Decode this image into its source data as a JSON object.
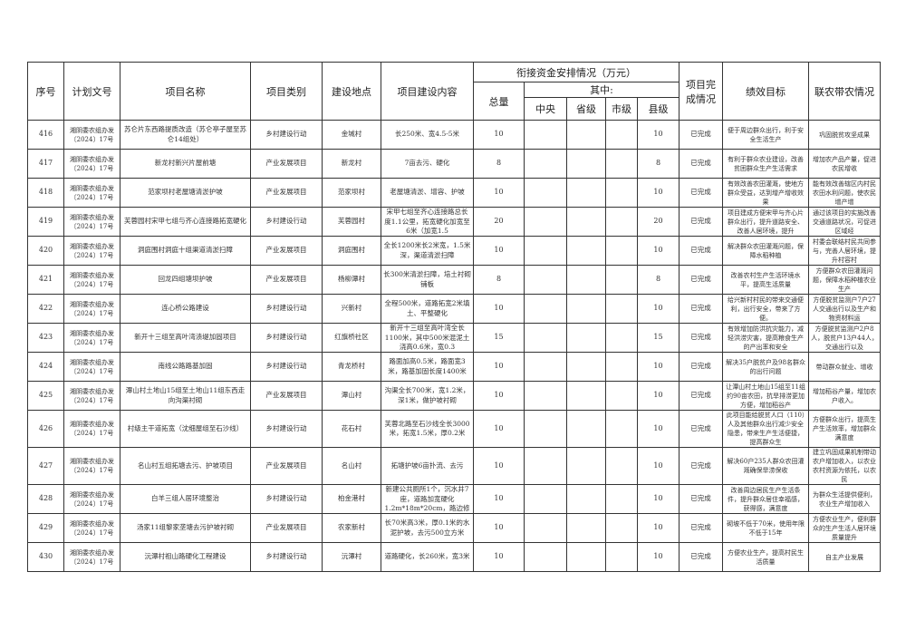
{
  "header": {
    "no": "序号",
    "doc": "计划文号",
    "name": "项目名称",
    "type": "项目类别",
    "place": "建设地点",
    "content": "项目建设内容",
    "funds": "衔接资金安排情况（万元）",
    "total": "总量",
    "of_which": "其中:",
    "central": "中央",
    "provincial": "省级",
    "city": "市级",
    "county": "县级",
    "status": "项目完成情况",
    "goal": "绩效目标",
    "link": "联农带农情况"
  },
  "rows": [
    {
      "no": "416",
      "doc": "湘阴委农组办发〔2024〕17号",
      "name": "苏仑片东西路提质改造（苏仑亭子屋至苏仑14组处）",
      "type": "乡村建设行动",
      "place": "金堿村",
      "content": "长250米、宽4.5-5米",
      "total": "10",
      "central": "",
      "provincial": "",
      "city": "",
      "county": "10",
      "status": "已完成",
      "goal": "便于周边群众出行，利于安全生活生产",
      "link": "巩固脱贫攻坚成果"
    },
    {
      "no": "417",
      "doc": "湘阴委农组办发〔2024〕17号",
      "name": "新龙村新兴片屋前塘",
      "type": "产业发展项目",
      "place": "新龙村",
      "content": "7亩去污、硬化",
      "total": "8",
      "central": "",
      "provincial": "",
      "city": "",
      "county": "8",
      "status": "已完成",
      "goal": "有利于群众农业建设，改善贫困群众生产生活需求",
      "link": "增加农产品产量，促进农民增收"
    },
    {
      "no": "418",
      "doc": "湘阴委农组办发〔2024〕17号",
      "name": "范家坝村老屋塘清淤护坡",
      "type": "产业发展项目",
      "place": "范家坝村",
      "content": "老屋塘清淤、增容、护坡",
      "total": "10",
      "central": "",
      "provincial": "",
      "city": "",
      "county": "10",
      "status": "已完成",
      "goal": "有效改善农田灌溉，使地方群众受益，达到增产增收效果",
      "link": "能有效改善辖区内村民农田水利问题，使农民增产增"
    },
    {
      "no": "419",
      "doc": "湘阴委农组办发〔2024〕17号",
      "name": "芙蓉园村宋甲七组与齐心连接路拓宽硬化",
      "type": "乡村建设行动",
      "place": "芙蓉园村",
      "content": "宋甲七组至齐心连接路总长度1.1公里，拓宽硬化加宽至6米（加宽1.5",
      "total": "20",
      "central": "",
      "provincial": "",
      "city": "",
      "county": "20",
      "status": "已完成",
      "goal": "项目建成方便宋甲与齐心片群众出行，提升道路安全、改善人居环境，提升",
      "link": "通过该项目的实施改善交通道路状况，可促进区域经"
    },
    {
      "no": "420",
      "doc": "湘阴委农组办发〔2024〕17号",
      "name": "洞庭围村洞庭十组渠道清淤扫障",
      "type": "产业发展项目",
      "place": "洞庭围村",
      "content": "全长1200米长2米宽，1.5米深，渠道清淤扫障",
      "total": "10",
      "central": "",
      "provincial": "",
      "city": "",
      "county": "10",
      "status": "已完成",
      "goal": "解决群众农田灌溉问题，保障水稻种植",
      "link": "村委会联结村民共同参与，完善人居环境，提升村容村"
    },
    {
      "no": "421",
      "doc": "湘阴委农组办发〔2024〕17号",
      "name": "回龙四组塘坝护坡",
      "type": "产业发展项目",
      "place": "杨柳潭村",
      "content": "长300米清淤扫障，培土衬砌铺板",
      "total": "8",
      "central": "",
      "provincial": "",
      "city": "",
      "county": "8",
      "status": "已完成",
      "goal": "改善农村生产生活环境水平，提高生活质量",
      "link": "方便群众农田灌溉问题，保障水稻种植农业生产"
    },
    {
      "no": "422",
      "doc": "湘阴委农组办发〔2024〕17号",
      "name": "连心桥公路建设",
      "type": "乡村建设行动",
      "place": "兴新村",
      "content": "全程500米，道路拓宽2米填土、平整硬化",
      "total": "10",
      "central": "",
      "provincial": "",
      "city": "",
      "county": "10",
      "status": "已完成",
      "goal": "给兴新村村民的带来交通便利，出行安全，带来了方便。",
      "link": "方便脱贫监测户7户27人交通出行以及生产和物资材料运"
    },
    {
      "no": "423",
      "doc": "湘阴委农组办发〔2024〕17号",
      "name": "新开十三组至高叶湾渍堤加固项目",
      "type": "乡村建设行动",
      "place": "红旗桥社区",
      "content": "新开十三组至高叶湾全长1100米，其中500米混泥土浇高0.6米，宽0.3",
      "total": "15",
      "central": "",
      "provincial": "",
      "city": "",
      "county": "15",
      "status": "已完成",
      "goal": "有效增加防洪抗灾能力，减轻洪涝灾害，提高粮食生产的产出率和安全",
      "link": "方便脱贫监测户2户8人，脱贫户13户44人，交通出行以及"
    },
    {
      "no": "424",
      "doc": "湘阴委农组办发〔2024〕17号",
      "name": "南线公路路基加固",
      "type": "乡村建设行动",
      "place": "青龙桥村",
      "content": "路面加高0.5米，路面宽3米，路基加固长度1400米",
      "total": "10",
      "central": "",
      "provincial": "",
      "city": "",
      "county": "10",
      "status": "已完成",
      "goal": "解决35户脱贫户及98名群众的出行问题",
      "link": "带动群众就业、增收"
    },
    {
      "no": "425",
      "doc": "湘阴委农组办发〔2024〕17号",
      "name": "潭山村土地山15组至土地山11组东西走向沟渠衬砌",
      "type": "产业发展项目",
      "place": "潭山村",
      "content": "沟渠全长700米，宽1.2米，深1米，做护坡衬砌",
      "total": "10",
      "central": "",
      "provincial": "",
      "city": "",
      "county": "10",
      "status": "已完成",
      "goal": "让潭山村土地山15组至11组约90亩农田，抗旱排涝更加方便，增加稻谷产",
      "link": "增加稻谷产量，增加农户收入。"
    },
    {
      "no": "426",
      "doc": "湘阴委农组办发〔2024〕17号",
      "name": "村级主干道拓宽（沈细屋组至石沙线）",
      "type": "乡村建设行动",
      "place": "花石村",
      "content": "芙蓉北路至石沙线全长3000米，拓宽1.5米，厚0.2米",
      "total": "10",
      "central": "",
      "provincial": "",
      "city": "",
      "county": "10",
      "status": "已完成",
      "goal": "此项目能给脱贫人口（110）人及其他群众出行减少安全隐患，带来生产生活便捷，提高群众生",
      "link": "方便群众出行，提高生产生活效率，增加群众满意度"
    },
    {
      "no": "427",
      "doc": "湘阴委农组办发〔2024〕17号",
      "name": "名山村五组拓塘去污、护坡项目",
      "type": "产业发展项目",
      "place": "名山村",
      "content": "拓塘护坡6亩扑流、去污",
      "total": "10",
      "central": "",
      "provincial": "",
      "city": "",
      "county": "10",
      "status": "已完成",
      "goal": "解决60户235人群众农田灌溉确保旱涝保收",
      "link": "建立巩固成果机制带动农户增加收入，以农业农村资源为依托，以农民"
    },
    {
      "no": "428",
      "doc": "湘阴委农组办发〔2024〕17号",
      "name": "白羊三组人居环境整治",
      "type": "乡村建设行动",
      "place": "柏金港村",
      "content": "新建公共厕所1个，沉水井7座，道路加宽硬化1.2m*18m*20cm，路边修",
      "total": "10",
      "central": "",
      "provincial": "",
      "city": "",
      "county": "10",
      "status": "已完成",
      "goal": "改善周边居民生产生活条件，提升群众居住幸福感，获得感，满意度",
      "link": "为群众生活提供便利，农业生产增加收入"
    },
    {
      "no": "429",
      "doc": "湘阴委农组办发〔2024〕17号",
      "name": "汤家11组黎家垄塘去污护坡衬砌",
      "type": "产业发展项目",
      "place": "农家新村",
      "content": "长70米高3米，厚0.1米的水泥护坡，去污500立方米",
      "total": "10",
      "central": "",
      "provincial": "",
      "city": "",
      "county": "10",
      "status": "已完成",
      "goal": "砌坡不低于70米，使用年限不低于15年",
      "link": "方便农业生产，便利群众的生产生活人居环境质量提升"
    },
    {
      "no": "430",
      "doc": "湘阴委农组办发〔2024〕17号",
      "name": "沅潭村祖山路硬化工程建设",
      "type": "乡村建设行动",
      "place": "沅潭村",
      "content": "道路硬化，长260米，宽3米",
      "total": "10",
      "central": "",
      "provincial": "",
      "city": "",
      "county": "10",
      "status": "已完成",
      "goal": "方便农业生产，提高村民生活质量",
      "link": "自主产业发展"
    }
  ]
}
